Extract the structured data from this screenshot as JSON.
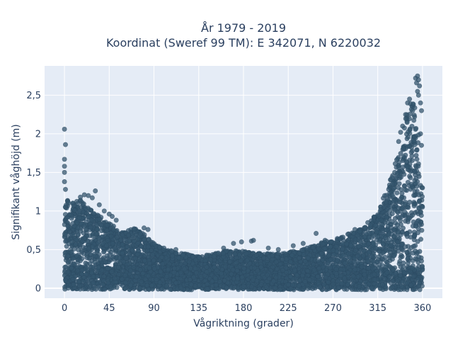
{
  "chart_data": {
    "type": "scatter",
    "title": "År 1979 - 2019",
    "subtitle": "Koordinat (Sweref 99 TM): E 342071, N 6220032",
    "xlabel": "Vågriktning (grader)",
    "ylabel": "Signifikant våghöjd (m)",
    "xlim": [
      -20,
      380
    ],
    "ylim": [
      -0.13,
      2.88
    ],
    "x_ticks": [
      {
        "value": 0,
        "label": "0"
      },
      {
        "value": 45,
        "label": "45"
      },
      {
        "value": 90,
        "label": "90"
      },
      {
        "value": 135,
        "label": "135"
      },
      {
        "value": 180,
        "label": "180"
      },
      {
        "value": 225,
        "label": "225"
      },
      {
        "value": 270,
        "label": "270"
      },
      {
        "value": 315,
        "label": "315"
      },
      {
        "value": 360,
        "label": "360"
      }
    ],
    "y_ticks": [
      {
        "value": 0,
        "label": "0"
      },
      {
        "value": 0.5,
        "label": "0,5"
      },
      {
        "value": 1,
        "label": "1"
      },
      {
        "value": 1.5,
        "label": "1,5"
      },
      {
        "value": 2,
        "label": "2"
      },
      {
        "value": 2.5,
        "label": "2,5"
      }
    ],
    "grid": true,
    "marker_color": "#34566e",
    "plot_background": "#e5ecf6",
    "upper_envelope": [
      [
        0,
        1.25
      ],
      [
        5,
        1.15
      ],
      [
        10,
        1.1
      ],
      [
        15,
        1.15
      ],
      [
        20,
        1.1
      ],
      [
        25,
        1.05
      ],
      [
        30,
        1.0
      ],
      [
        35,
        0.95
      ],
      [
        40,
        0.9
      ],
      [
        45,
        0.85
      ],
      [
        50,
        0.8
      ],
      [
        55,
        0.75
      ],
      [
        60,
        0.72
      ],
      [
        65,
        0.75
      ],
      [
        70,
        0.78
      ],
      [
        75,
        0.75
      ],
      [
        80,
        0.7
      ],
      [
        85,
        0.65
      ],
      [
        90,
        0.58
      ],
      [
        100,
        0.5
      ],
      [
        110,
        0.48
      ],
      [
        120,
        0.45
      ],
      [
        130,
        0.42
      ],
      [
        140,
        0.42
      ],
      [
        150,
        0.45
      ],
      [
        160,
        0.48
      ],
      [
        170,
        0.5
      ],
      [
        180,
        0.48
      ],
      [
        190,
        0.45
      ],
      [
        200,
        0.45
      ],
      [
        210,
        0.45
      ],
      [
        220,
        0.45
      ],
      [
        230,
        0.48
      ],
      [
        240,
        0.5
      ],
      [
        250,
        0.55
      ],
      [
        260,
        0.6
      ],
      [
        270,
        0.62
      ],
      [
        280,
        0.68
      ],
      [
        290,
        0.72
      ],
      [
        300,
        0.78
      ],
      [
        305,
        0.82
      ],
      [
        310,
        0.9
      ],
      [
        315,
        1.0
      ],
      [
        320,
        1.15
      ],
      [
        325,
        1.3
      ],
      [
        330,
        1.5
      ],
      [
        335,
        1.75
      ],
      [
        340,
        2.0
      ],
      [
        345,
        2.35
      ],
      [
        350,
        2.45
      ],
      [
        353,
        2.3
      ],
      [
        356,
        2.05
      ],
      [
        358,
        1.6
      ],
      [
        360,
        1.2
      ]
    ],
    "outliers": [
      [
        0,
        2.06
      ],
      [
        1,
        1.86
      ],
      [
        0,
        1.67
      ],
      [
        0,
        1.58
      ],
      [
        0,
        1.5
      ],
      [
        0,
        1.38
      ],
      [
        1,
        1.28
      ],
      [
        20,
        1.21
      ],
      [
        24,
        1.2
      ],
      [
        16,
        1.18
      ],
      [
        31,
        1.26
      ],
      [
        28,
        1.17
      ],
      [
        35,
        1.08
      ],
      [
        40,
        1.0
      ],
      [
        48,
        0.93
      ],
      [
        52,
        0.88
      ],
      [
        45,
        0.96
      ],
      [
        70,
        0.77
      ],
      [
        80,
        0.78
      ],
      [
        84,
        0.76
      ],
      [
        100,
        0.52
      ],
      [
        112,
        0.5
      ],
      [
        160,
        0.52
      ],
      [
        170,
        0.58
      ],
      [
        178,
        0.6
      ],
      [
        188,
        0.61
      ],
      [
        190,
        0.62
      ],
      [
        205,
        0.52
      ],
      [
        215,
        0.5
      ],
      [
        230,
        0.55
      ],
      [
        240,
        0.58
      ],
      [
        244,
        0.52
      ],
      [
        253,
        0.71
      ],
      [
        262,
        0.62
      ],
      [
        268,
        0.6
      ],
      [
        280,
        0.66
      ],
      [
        285,
        0.7
      ],
      [
        292,
        0.76
      ],
      [
        305,
        0.85
      ],
      [
        318,
        1.02
      ],
      [
        322,
        1.2
      ],
      [
        326,
        1.28
      ],
      [
        330,
        1.35
      ],
      [
        332,
        1.5
      ],
      [
        336,
        1.9
      ],
      [
        338,
        2.02
      ],
      [
        340,
        2.1
      ],
      [
        343,
        2.25
      ],
      [
        345,
        2.4
      ],
      [
        347,
        2.45
      ],
      [
        350,
        2.3
      ],
      [
        352,
        2.22
      ],
      [
        353,
        2.72
      ],
      [
        354,
        2.66
      ],
      [
        355,
        2.75
      ],
      [
        356,
        2.7
      ],
      [
        357,
        2.62
      ],
      [
        355,
        2.55
      ],
      [
        356,
        2.5
      ],
      [
        358,
        2.4
      ],
      [
        359,
        2.3
      ],
      [
        358,
        2.0
      ],
      [
        359,
        1.85
      ],
      [
        360,
        1.3
      ],
      [
        360,
        1.05
      ]
    ]
  }
}
